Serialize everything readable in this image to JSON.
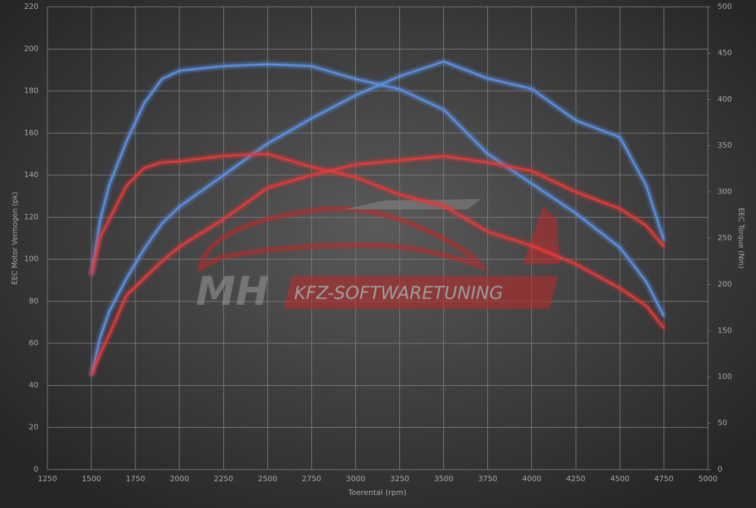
{
  "chart_data": {
    "type": "line",
    "xlabel": "Toerental (rpm)",
    "ylabel": "EEC Motor Vermogen (pk)",
    "y2label": "EEC Torque (Nm)",
    "watermark": [
      "MH",
      "KFZ-SOFTWARETUNING"
    ],
    "x": [
      1500,
      1550,
      1600,
      1700,
      1800,
      1900,
      2000,
      2250,
      2500,
      2750,
      3000,
      3250,
      3500,
      3750,
      4000,
      4250,
      4500,
      4650,
      4750
    ],
    "series": [
      {
        "color": "#5b8fe0",
        "axis": "y2",
        "values": [
          211,
          270,
          307,
          355,
          396,
          422,
          431,
          436,
          438,
          436,
          422,
          411,
          389,
          341,
          309,
          277,
          240,
          203,
          166
        ]
      },
      {
        "color": "#5b8fe0",
        "values": [
          45,
          63,
          75,
          91,
          105,
          117,
          125,
          140,
          155,
          167,
          178,
          187,
          194,
          186,
          181,
          166,
          158,
          135,
          109
        ]
      },
      {
        "color": "#e03a3a",
        "axis": "y2",
        "values": [
          211,
          251,
          270,
          307,
          326,
          332,
          333,
          339,
          341,
          327,
          316,
          297,
          285,
          257,
          242,
          222,
          196,
          177,
          153
        ]
      },
      {
        "color": "#e03a3a",
        "values": [
          45,
          55,
          64,
          83,
          91,
          99,
          106,
          119,
          134,
          140,
          145,
          147,
          149,
          146,
          142,
          132,
          124,
          116,
          106
        ]
      }
    ],
    "xlim": [
      1250,
      5000
    ],
    "xticks": [
      1250,
      1500,
      1750,
      2000,
      2250,
      2500,
      2750,
      3000,
      3250,
      3500,
      3750,
      4000,
      4250,
      4500,
      4750,
      5000
    ],
    "ylim": [
      0,
      220
    ],
    "yticks": [
      0,
      20,
      40,
      60,
      80,
      100,
      120,
      140,
      160,
      180,
      200,
      220
    ],
    "y2lim": [
      0,
      500
    ],
    "y2ticks": [
      0,
      50,
      100,
      150,
      200,
      250,
      300,
      350,
      400,
      450,
      500
    ],
    "grid": true
  }
}
